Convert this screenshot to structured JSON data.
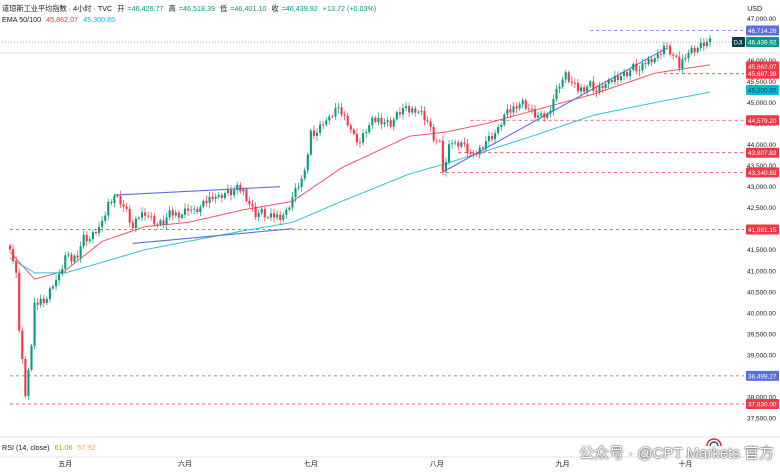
{
  "header": {
    "title": "道琼斯工业平均指数 · 4小时 · TVC",
    "ohlc": {
      "o_label": "开",
      "o": "=46,426.77",
      "h_label": "高",
      "h": "=46,518.39",
      "l_label": "低",
      "l": "=46,401.10",
      "c_label": "收",
      "c": "=46,439.92",
      "change": "+13.72 (+0.03%)"
    },
    "ema": {
      "label": "EMA 50/100",
      "v1": "45,862.07",
      "v2": "45,300.85"
    },
    "rsi": {
      "label": "RSI (14, close)",
      "v1": "61.06",
      "v2": "57.92"
    },
    "currency": "USD"
  },
  "watermark": "公众号 · @CPT Markets 官方",
  "colors": {
    "up": "#089981",
    "down": "#f23645",
    "ema50": "#f23645",
    "ema100": "#00bcd4",
    "trend": "#5b6ee1",
    "level": "#f23645",
    "price": "#089981",
    "grid": "#e0e3eb"
  },
  "chart_data": {
    "type": "line",
    "title": "道琼斯工业平均指数 · 4小时 · TVC",
    "ylim": [
      37450,
      47250
    ],
    "grid": true,
    "legend": "top-left",
    "y_ticks": [
      "47,000.00",
      "46,500.00",
      "46,000.00",
      "45,500.00",
      "45,000.00",
      "44,500.00",
      "44,000.00",
      "43,500.00",
      "43,000.00",
      "42,500.00",
      "42,000.00",
      "41,500.00",
      "41,000.00",
      "40,500.00",
      "40,000.00",
      "39,500.00",
      "39,000.00",
      "38,500.00",
      "38,000.00",
      "37,500.00"
    ],
    "y_tick_values": [
      47000,
      46500,
      46000,
      45500,
      45000,
      44500,
      44000,
      43500,
      43000,
      42500,
      42000,
      41500,
      41000,
      40500,
      40000,
      39500,
      39000,
      38500,
      38000,
      37500
    ],
    "x_ticks": [
      "五月",
      "六月",
      "七月",
      "八月",
      "九月",
      "十月"
    ],
    "x_tick_values": [
      18,
      57,
      98,
      139,
      180,
      220
    ],
    "x_range": [
      0,
      228
    ],
    "close_anchors": [
      [
        0,
        41600
      ],
      [
        2,
        40900
      ],
      [
        3,
        39650
      ],
      [
        4,
        38900
      ],
      [
        5,
        37950
      ],
      [
        6,
        38700
      ],
      [
        7,
        39200
      ],
      [
        8,
        40150
      ],
      [
        10,
        40300
      ],
      [
        12,
        40350
      ],
      [
        14,
        40700
      ],
      [
        16,
        40850
      ],
      [
        18,
        41350
      ],
      [
        20,
        41250
      ],
      [
        22,
        41400
      ],
      [
        24,
        41800
      ],
      [
        26,
        41750
      ],
      [
        28,
        41950
      ],
      [
        30,
        42100
      ],
      [
        32,
        42600
      ],
      [
        34,
        42800
      ],
      [
        36,
        42650
      ],
      [
        38,
        42400
      ],
      [
        40,
        42000
      ],
      [
        42,
        42300
      ],
      [
        44,
        42400
      ],
      [
        48,
        42100
      ],
      [
        50,
        42150
      ],
      [
        52,
        42350
      ],
      [
        54,
        42350
      ],
      [
        56,
        42350
      ],
      [
        58,
        42500
      ],
      [
        60,
        42400
      ],
      [
        62,
        42500
      ],
      [
        64,
        42650
      ],
      [
        66,
        42800
      ],
      [
        68,
        42750
      ],
      [
        70,
        42850
      ],
      [
        72,
        42850
      ],
      [
        74,
        42950
      ],
      [
        76,
        42900
      ],
      [
        78,
        42600
      ],
      [
        80,
        42350
      ],
      [
        82,
        42400
      ],
      [
        84,
        42250
      ],
      [
        86,
        42300
      ],
      [
        88,
        42300
      ],
      [
        90,
        42400
      ],
      [
        92,
        42750
      ],
      [
        94,
        43050
      ],
      [
        96,
        43300
      ],
      [
        98,
        44300
      ],
      [
        100,
        44300
      ],
      [
        102,
        44550
      ],
      [
        104,
        44600
      ],
      [
        106,
        44850
      ],
      [
        108,
        44750
      ],
      [
        110,
        44550
      ],
      [
        112,
        44200
      ],
      [
        114,
        44050
      ],
      [
        116,
        44350
      ],
      [
        118,
        44550
      ],
      [
        120,
        44600
      ],
      [
        122,
        44550
      ],
      [
        124,
        44500
      ],
      [
        126,
        44700
      ],
      [
        128,
        44850
      ],
      [
        130,
        44800
      ],
      [
        132,
        44850
      ],
      [
        134,
        44750
      ],
      [
        136,
        44550
      ],
      [
        138,
        44150
      ],
      [
        140,
        44000
      ],
      [
        141,
        43400
      ],
      [
        142,
        43550
      ],
      [
        143,
        44100
      ],
      [
        145,
        44000
      ],
      [
        147,
        44050
      ],
      [
        149,
        43850
      ],
      [
        151,
        43700
      ],
      [
        153,
        43900
      ],
      [
        155,
        44100
      ],
      [
        157,
        44200
      ],
      [
        159,
        44350
      ],
      [
        161,
        44700
      ],
      [
        163,
        44800
      ],
      [
        165,
        44950
      ],
      [
        167,
        45000
      ],
      [
        169,
        44850
      ],
      [
        171,
        44700
      ],
      [
        173,
        44650
      ],
      [
        175,
        44700
      ],
      [
        177,
        45100
      ],
      [
        179,
        45450
      ],
      [
        181,
        45650
      ],
      [
        183,
        45450
      ],
      [
        185,
        45300
      ],
      [
        187,
        45350
      ],
      [
        189,
        45450
      ],
      [
        191,
        45250
      ],
      [
        193,
        45400
      ],
      [
        195,
        45450
      ],
      [
        197,
        45600
      ],
      [
        199,
        45650
      ],
      [
        201,
        45700
      ],
      [
        203,
        45850
      ],
      [
        205,
        45750
      ],
      [
        207,
        45950
      ],
      [
        209,
        46050
      ],
      [
        211,
        46100
      ],
      [
        213,
        46350
      ],
      [
        215,
        46200
      ],
      [
        217,
        46000
      ],
      [
        218,
        45850
      ],
      [
        220,
        46150
      ],
      [
        222,
        46250
      ],
      [
        224,
        46300
      ],
      [
        226,
        46400
      ],
      [
        228,
        46440
      ]
    ],
    "series": [
      {
        "name": "EMA 50",
        "values": [
          [
            0,
            41450
          ],
          [
            8,
            40800
          ],
          [
            18,
            41000
          ],
          [
            30,
            41700
          ],
          [
            44,
            42050
          ],
          [
            58,
            42150
          ],
          [
            76,
            42450
          ],
          [
            92,
            42650
          ],
          [
            108,
            43450
          ],
          [
            130,
            44200
          ],
          [
            142,
            44300
          ],
          [
            155,
            44500
          ],
          [
            170,
            44800
          ],
          [
            190,
            45200
          ],
          [
            210,
            45700
          ],
          [
            228,
            45900
          ]
        ]
      },
      {
        "name": "EMA 100",
        "values": [
          [
            0,
            41300
          ],
          [
            8,
            40950
          ],
          [
            18,
            40950
          ],
          [
            30,
            41200
          ],
          [
            44,
            41500
          ],
          [
            58,
            41700
          ],
          [
            76,
            41950
          ],
          [
            92,
            42150
          ],
          [
            108,
            42650
          ],
          [
            130,
            43300
          ],
          [
            142,
            43550
          ],
          [
            155,
            43850
          ],
          [
            170,
            44200
          ],
          [
            190,
            44700
          ],
          [
            210,
            45000
          ],
          [
            228,
            45250
          ]
        ]
      }
    ],
    "trendlines": [
      {
        "from": [
          34,
          42800
        ],
        "to": [
          88,
          43000
        ]
      },
      {
        "from": [
          40,
          41650
        ],
        "to": [
          92,
          42000
        ]
      },
      {
        "from": [
          141,
          43350
        ],
        "to": [
          214,
          46300
        ]
      }
    ],
    "levels": [
      {
        "value": 46714.26,
        "label": "46,714.26",
        "style": "trend",
        "xstart": 189
      },
      {
        "value": 45862.07,
        "label": "45,862.07",
        "style": "ema50"
      },
      {
        "value": 45687.38,
        "label": "45,687.38",
        "style": "level",
        "xstart": 213
      },
      {
        "value": 45300.85,
        "label": "45,300.85",
        "style": "ema100"
      },
      {
        "value": 44579.2,
        "label": "44,579.20",
        "style": "level",
        "xstart": 150
      },
      {
        "value": 43807.83,
        "label": "43,807.83",
        "style": "level",
        "xstart": 146
      },
      {
        "value": 43340.69,
        "label": "43,340.69",
        "style": "level",
        "xstart": 140
      },
      {
        "value": 41981.15,
        "label": "41,981.15",
        "style": "level",
        "xstart": 0
      },
      {
        "value": 38499.27,
        "label": "38,499.27",
        "style": "trend",
        "xstart": 0
      },
      {
        "value": 37830.0,
        "label": "37,830.00",
        "style": "level",
        "xstart": 0
      }
    ],
    "current_price": {
      "value": 46439.92,
      "label": "46,439.92",
      "tag": "DJI"
    }
  }
}
